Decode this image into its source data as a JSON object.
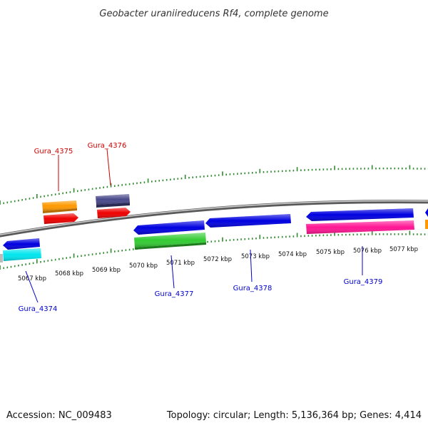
{
  "title": "Geobacter uraniireducens Rf4, complete genome",
  "footer": {
    "accession": "Accession: NC_009483",
    "summary": "Topology: circular; Length: 5,136,364 bp; Genes: 4,414"
  },
  "scale_labels": [
    "5067 kbp",
    "5068 kbp",
    "5069 kbp",
    "5070 kbp",
    "5071 kbp",
    "5072 kbp",
    "5073 kbp",
    "5074 kbp",
    "5075 kbp",
    "5076 kbp",
    "5077 kbp"
  ],
  "gene_labels": [
    {
      "text": "Gura_4375",
      "color": "#cc0000"
    },
    {
      "text": "Gura_4376",
      "color": "#cc0000"
    },
    {
      "text": "Gura_4374",
      "color": "#0000cc"
    },
    {
      "text": "Gura_4377",
      "color": "#0000cc"
    },
    {
      "text": "Gura_4378",
      "color": "#0000cc"
    },
    {
      "text": "Gura_4379",
      "color": "#0000cc"
    }
  ],
  "colors": {
    "backbone": "#8c8c8c",
    "ticks": "#2e8b2e",
    "cds_blue": "#0000e0",
    "cds_red": "#ee0000",
    "orange": "#ff9900",
    "slate": "#48488a",
    "green": "#33cc33",
    "magenta": "#ff1493",
    "cyan": "#00e5ee"
  }
}
